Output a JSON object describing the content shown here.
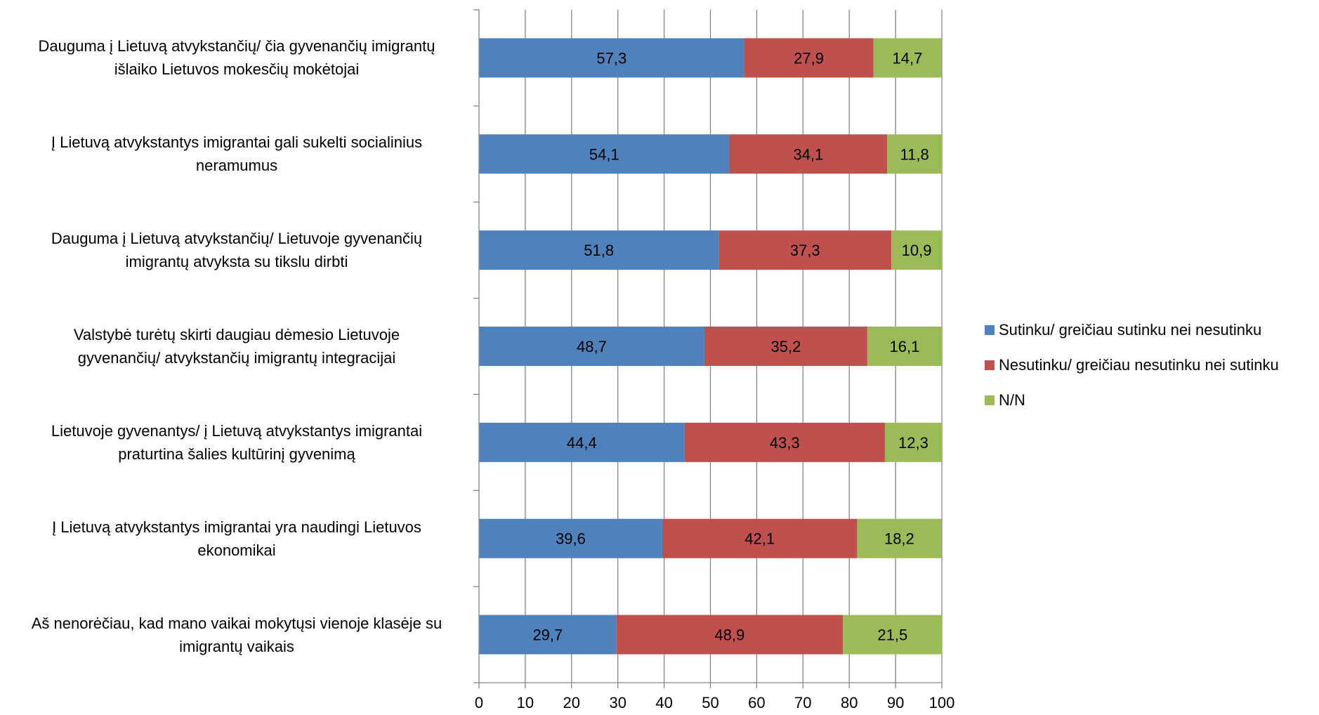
{
  "chart_data": {
    "type": "bar",
    "orientation": "horizontal",
    "stacked": true,
    "categories": [
      "Dauguma į Lietuvą atvykstančių/ čia gyvenančių imigrantų išlaiko Lietuvos mokesčių mokėtojai",
      "Į Lietuvą atvykstantys imigrantai gali sukelti socialinius neramumus",
      "Dauguma į Lietuvą atvykstančių/ Lietuvoje gyvenančių imigrantų atvyksta su tikslu dirbti",
      "Valstybė turėtų skirti daugiau dėmesio Lietuvoje gyvenančių/ atvykstančių imigrantų integracijai",
      "Lietuvoje gyvenantys/ į Lietuvą atvykstantys imigrantai praturtina šalies kultūrinį gyvenimą",
      "Į Lietuvą atvykstantys imigrantai yra naudingi Lietuvos ekonomikai",
      "Aš nenorėčiau, kad mano vaikai mokytųsi vienoje klasėje su imigrantų vaikais"
    ],
    "category_lines": [
      [
        "Dauguma į Lietuvą atvykstančių/ čia gyvenančių imigrantų",
        "išlaiko Lietuvos mokesčių mokėtojai"
      ],
      [
        "Į Lietuvą atvykstantys imigrantai gali sukelti socialinius",
        "neramumus"
      ],
      [
        "Dauguma į Lietuvą atvykstančių/ Lietuvoje gyvenančių",
        "imigrantų atvyksta su tikslu dirbti"
      ],
      [
        "Valstybė turėtų skirti daugiau dėmesio Lietuvoje",
        "gyvenančių/ atvykstančių imigrantų integracijai"
      ],
      [
        "Lietuvoje gyvenantys/ į Lietuvą atvykstantys imigrantai",
        "praturtina šalies kultūrinį gyvenimą"
      ],
      [
        "Į Lietuvą atvykstantys imigrantai yra naudingi Lietuvos",
        "ekonomikai"
      ],
      [
        "Aš nenorėčiau, kad mano vaikai mokytųsi vienoje klasėje su",
        "imigrantų vaikais"
      ]
    ],
    "series": [
      {
        "name": "Sutinku/ greičiau sutinku nei nesutinku",
        "color": "#4F81BD",
        "values": [
          57.3,
          54.1,
          51.8,
          48.7,
          44.4,
          39.6,
          29.7
        ],
        "labels": [
          "57,3",
          "54,1",
          "51,8",
          "48,7",
          "44,4",
          "39,6",
          "29,7"
        ]
      },
      {
        "name": "Nesutinku/ greičiau nesutinku nei sutinku",
        "color": "#C0504D",
        "values": [
          27.9,
          34.1,
          37.3,
          35.2,
          43.3,
          42.1,
          48.9
        ],
        "labels": [
          "27,9",
          "34,1",
          "37,3",
          "35,2",
          "43,3",
          "42,1",
          "48,9"
        ]
      },
      {
        "name": "N/N",
        "color": "#9BBB59",
        "values": [
          14.7,
          11.8,
          10.9,
          16.1,
          12.3,
          18.2,
          21.5
        ],
        "labels": [
          "14,7",
          "11,8",
          "10,9",
          "16,1",
          "12,3",
          "18,2",
          "21,5"
        ]
      }
    ],
    "xlim": [
      0,
      100
    ],
    "xticks": [
      "0",
      "10",
      "20",
      "30",
      "40",
      "50",
      "60",
      "70",
      "80",
      "90",
      "100"
    ],
    "grid": true,
    "legend_position": "right",
    "title": "",
    "xlabel": "",
    "ylabel": "",
    "gridline_color": "#868686"
  }
}
